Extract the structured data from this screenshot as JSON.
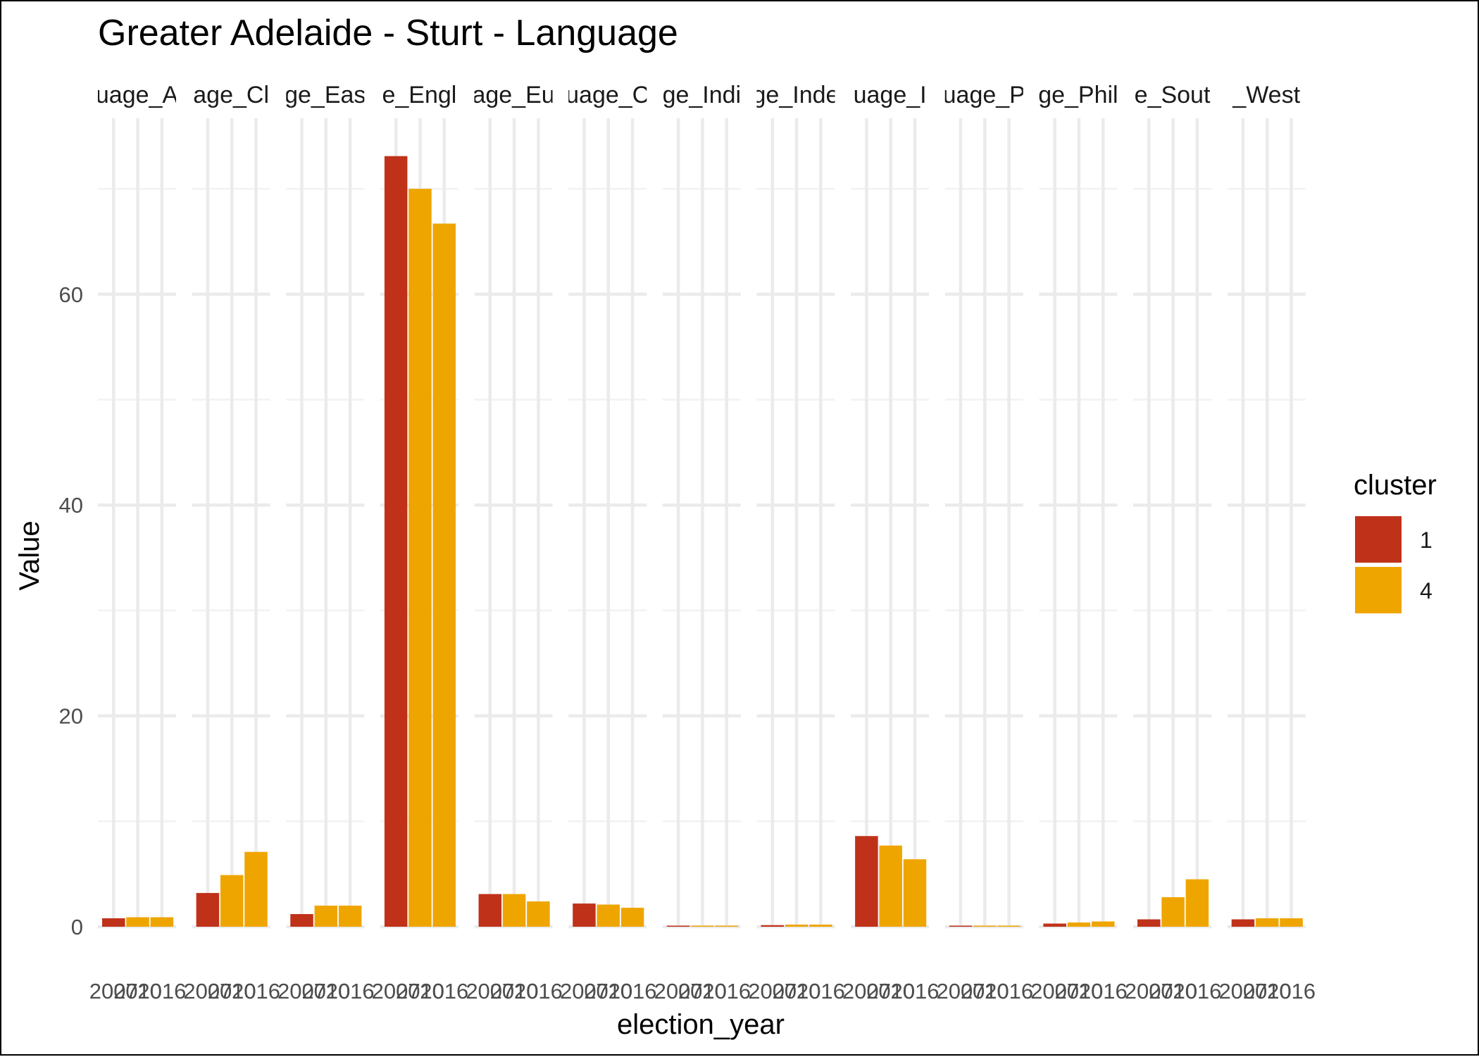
{
  "chart_data": {
    "type": "bar",
    "title": "Greater Adelaide - Sturt - Language",
    "xlabel": "election_year",
    "ylabel": "Value",
    "ylim": [
      0,
      74
    ],
    "y_ticks": [
      0,
      20,
      40,
      60
    ],
    "x_tick_labels": [
      "2007",
      "2010",
      "2016"
    ],
    "facets": [
      "uage_A",
      "age_Cl",
      "ge_Eas",
      "e_Engl",
      "age_Eu",
      "uage_C",
      "ge_Indi",
      "ge_Inde",
      "uage_I",
      "uage_P",
      "ge_Phil",
      "e_Sout",
      "_West"
    ],
    "legend": {
      "title": "cluster",
      "position": "right",
      "entries": [
        {
          "label": "1",
          "color": "#C0311A"
        },
        {
          "label": "4",
          "color": "#EFA500"
        }
      ]
    },
    "grid": true,
    "panels": [
      {
        "facet": "uage_A",
        "bars": [
          {
            "year": "2007",
            "cluster": "1",
            "value": 0.8
          },
          {
            "year": "2010",
            "cluster": "4",
            "value": 0.9
          },
          {
            "year": "2016",
            "cluster": "4",
            "value": 0.9
          }
        ]
      },
      {
        "facet": "age_Cl",
        "bars": [
          {
            "year": "2007",
            "cluster": "1",
            "value": 3.2
          },
          {
            "year": "2010",
            "cluster": "4",
            "value": 4.9
          },
          {
            "year": "2016",
            "cluster": "4",
            "value": 7.1
          }
        ]
      },
      {
        "facet": "ge_Eas",
        "bars": [
          {
            "year": "2007",
            "cluster": "1",
            "value": 1.2
          },
          {
            "year": "2010",
            "cluster": "4",
            "value": 2.0
          },
          {
            "year": "2016",
            "cluster": "4",
            "value": 2.0
          }
        ]
      },
      {
        "facet": "e_Engl",
        "bars": [
          {
            "year": "2007",
            "cluster": "1",
            "value": 73.1
          },
          {
            "year": "2010",
            "cluster": "4",
            "value": 70.0
          },
          {
            "year": "2016",
            "cluster": "4",
            "value": 66.7
          }
        ]
      },
      {
        "facet": "age_Eu",
        "bars": [
          {
            "year": "2007",
            "cluster": "1",
            "value": 3.1
          },
          {
            "year": "2010",
            "cluster": "4",
            "value": 3.1
          },
          {
            "year": "2016",
            "cluster": "4",
            "value": 2.4
          }
        ]
      },
      {
        "facet": "uage_C",
        "bars": [
          {
            "year": "2007",
            "cluster": "1",
            "value": 2.2
          },
          {
            "year": "2010",
            "cluster": "4",
            "value": 2.1
          },
          {
            "year": "2016",
            "cluster": "4",
            "value": 1.8
          }
        ]
      },
      {
        "facet": "ge_Indi",
        "bars": [
          {
            "year": "2007",
            "cluster": "1",
            "value": 0.1
          },
          {
            "year": "2010",
            "cluster": "4",
            "value": 0.1
          },
          {
            "year": "2016",
            "cluster": "4",
            "value": 0.1
          }
        ]
      },
      {
        "facet": "ge_Inde",
        "bars": [
          {
            "year": "2007",
            "cluster": "1",
            "value": 0.15
          },
          {
            "year": "2010",
            "cluster": "4",
            "value": 0.2
          },
          {
            "year": "2016",
            "cluster": "4",
            "value": 0.2
          }
        ]
      },
      {
        "facet": "uage_I",
        "bars": [
          {
            "year": "2007",
            "cluster": "1",
            "value": 8.6
          },
          {
            "year": "2010",
            "cluster": "4",
            "value": 7.7
          },
          {
            "year": "2016",
            "cluster": "4",
            "value": 6.4
          }
        ]
      },
      {
        "facet": "uage_P",
        "bars": [
          {
            "year": "2007",
            "cluster": "1",
            "value": 0.05
          },
          {
            "year": "2010",
            "cluster": "4",
            "value": 0.05
          },
          {
            "year": "2016",
            "cluster": "4",
            "value": 0.05
          }
        ]
      },
      {
        "facet": "ge_Phil",
        "bars": [
          {
            "year": "2007",
            "cluster": "1",
            "value": 0.3
          },
          {
            "year": "2010",
            "cluster": "4",
            "value": 0.4
          },
          {
            "year": "2016",
            "cluster": "4",
            "value": 0.5
          }
        ]
      },
      {
        "facet": "e_Sout",
        "bars": [
          {
            "year": "2007",
            "cluster": "1",
            "value": 0.7
          },
          {
            "year": "2010",
            "cluster": "4",
            "value": 2.8
          },
          {
            "year": "2016",
            "cluster": "4",
            "value": 4.5
          }
        ]
      },
      {
        "facet": "_West",
        "bars": [
          {
            "year": "2007",
            "cluster": "1",
            "value": 0.7
          },
          {
            "year": "2010",
            "cluster": "4",
            "value": 0.8
          },
          {
            "year": "2016",
            "cluster": "4",
            "value": 0.8
          }
        ]
      }
    ]
  }
}
